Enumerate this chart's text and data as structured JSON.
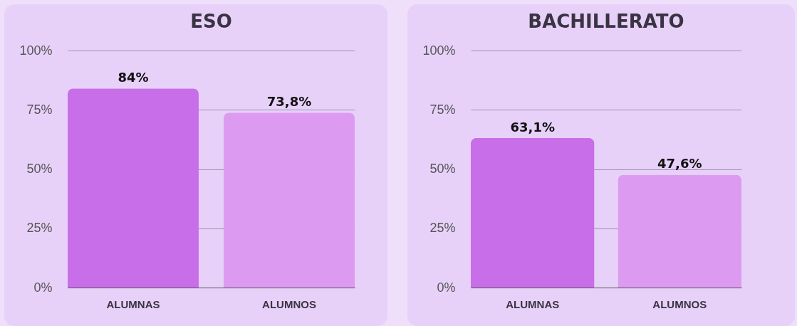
{
  "chart_data": [
    {
      "type": "bar",
      "title": "ESO",
      "categories": [
        "ALUMNAS",
        "ALUMNOS"
      ],
      "values": [
        84,
        73.8
      ],
      "colors": [
        "#c86ee8",
        "#dc9bf0"
      ],
      "value_labels": [
        "84%",
        "73,8%"
      ],
      "ylim": [
        0,
        100
      ],
      "yticks": [
        {
          "value": 0,
          "label": "0%"
        },
        {
          "value": 25,
          "label": "25%"
        },
        {
          "value": 50,
          "label": "50%"
        },
        {
          "value": 75,
          "label": "75%"
        },
        {
          "value": 100,
          "label": "100%"
        }
      ],
      "grid": "y"
    },
    {
      "type": "bar",
      "title": "BACHILLERATO",
      "categories": [
        "ALUMNAS",
        "ALUMNOS"
      ],
      "values": [
        63.1,
        47.6
      ],
      "colors": [
        "#c86ee8",
        "#dc9bf0"
      ],
      "value_labels": [
        "63,1%",
        "47,6%"
      ],
      "ylim": [
        0,
        100
      ],
      "yticks": [
        {
          "value": 0,
          "label": "0%"
        },
        {
          "value": 25,
          "label": "25%"
        },
        {
          "value": 50,
          "label": "50%"
        },
        {
          "value": 75,
          "label": "75%"
        },
        {
          "value": 100,
          "label": "100%"
        }
      ],
      "grid": "y"
    }
  ]
}
